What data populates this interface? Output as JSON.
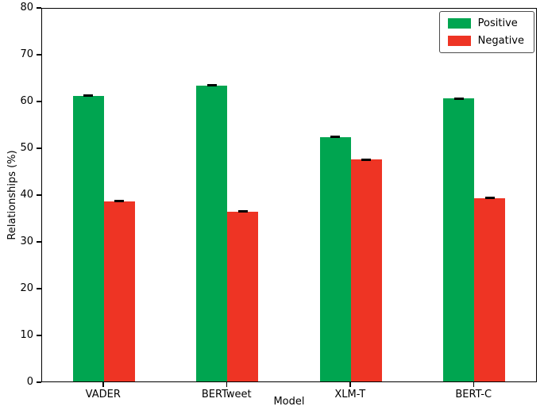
{
  "chart_data": {
    "type": "bar",
    "title": "",
    "xlabel": "Model",
    "ylabel": "Relationships (%)",
    "ylim": [
      0,
      80
    ],
    "ytick_step": 10,
    "grid": false,
    "categories": [
      "VADER",
      "BERTweet",
      "XLM-T",
      "BERT-C"
    ],
    "series": [
      {
        "name": "Positive",
        "color": "#00a550",
        "values": [
          61.3,
          63.5,
          52.5,
          60.7
        ],
        "errors": [
          0.2,
          0.2,
          0.2,
          0.2
        ]
      },
      {
        "name": "Negative",
        "color": "#ee3424",
        "values": [
          38.7,
          36.5,
          47.6,
          39.4
        ],
        "errors": [
          0.2,
          0.2,
          0.2,
          0.2
        ]
      }
    ],
    "legend": {
      "position": "upper right",
      "entries": [
        "Positive",
        "Negative"
      ]
    }
  }
}
